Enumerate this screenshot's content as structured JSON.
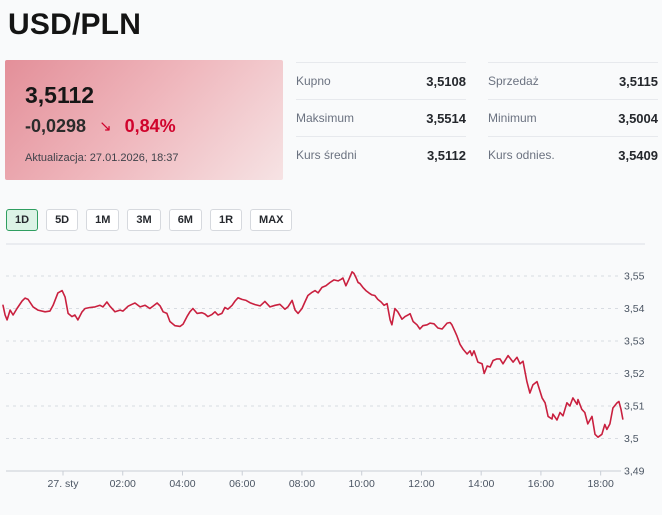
{
  "header": {
    "title": "USD/PLN"
  },
  "quote_card": {
    "value": "3,5112",
    "change": "-0,0298",
    "change_pct": "0,84%",
    "direction_icon": "arrow-down-right",
    "direction_glyph": "↘",
    "updated": "Aktualizacja: 27.01.2026, 18:37",
    "accent_red": "#d0032c",
    "gradient_from": "#e38f99",
    "gradient_to": "#f6e3e4"
  },
  "stats_table": {
    "columns": [
      {
        "rows": [
          {
            "label": "Kupno",
            "value": "3,5108"
          },
          {
            "label": "Maksimum",
            "value": "3,5514"
          },
          {
            "label": "Kurs średni",
            "value": "3,5112"
          }
        ]
      },
      {
        "rows": [
          {
            "label": "Sprzedaż",
            "value": "3,5115"
          },
          {
            "label": "Minimum",
            "value": "3,5004"
          },
          {
            "label": "Kurs odnies.",
            "value": "3,5409"
          }
        ]
      }
    ]
  },
  "range_selector": {
    "options": [
      "1D",
      "5D",
      "1M",
      "3M",
      "6M",
      "1R",
      "MAX"
    ],
    "active": "1D",
    "active_border": "#2f9e60",
    "active_bg": "#dcf3e6"
  },
  "chart_data": {
    "type": "line",
    "title": "",
    "xlabel": "",
    "ylabel": "",
    "line_color": "#c9203f",
    "grid": "dashed-horizontal",
    "x_unit": "hours since 00:00 on 27.01",
    "xlim": [
      -2.11,
      18.8
    ],
    "ylim": [
      3.49,
      3.556
    ],
    "x_ticks": [
      {
        "h": 0,
        "label": "27. sty"
      },
      {
        "h": 2,
        "label": "02:00"
      },
      {
        "h": 4,
        "label": "04:00"
      },
      {
        "h": 6,
        "label": "06:00"
      },
      {
        "h": 8,
        "label": "08:00"
      },
      {
        "h": 10,
        "label": "10:00"
      },
      {
        "h": 12,
        "label": "12:00"
      },
      {
        "h": 14,
        "label": "14:00"
      },
      {
        "h": 16,
        "label": "16:00"
      },
      {
        "h": 18,
        "label": "18:00"
      }
    ],
    "y_ticks": [
      {
        "v": 3.55,
        "label": "3,55"
      },
      {
        "v": 3.54,
        "label": "3,54"
      },
      {
        "v": 3.53,
        "label": "3,53"
      },
      {
        "v": 3.52,
        "label": "3,52"
      },
      {
        "v": 3.51,
        "label": "3,51"
      },
      {
        "v": 3.5,
        "label": "3,5"
      },
      {
        "v": 3.49,
        "label": "3,49",
        "axis": true
      }
    ],
    "points": [
      [
        -2.01,
        3.541
      ],
      [
        -1.94,
        3.538
      ],
      [
        -1.87,
        3.5365
      ],
      [
        -1.77,
        3.5395
      ],
      [
        -1.67,
        3.538
      ],
      [
        -1.54,
        3.54
      ],
      [
        -1.37,
        3.5423
      ],
      [
        -1.27,
        3.5432
      ],
      [
        -1.17,
        3.5428
      ],
      [
        -1,
        3.5405
      ],
      [
        -0.84,
        3.5395
      ],
      [
        -0.6,
        3.539
      ],
      [
        -0.44,
        3.5392
      ],
      [
        -0.33,
        3.541
      ],
      [
        -0.17,
        3.5448
      ],
      [
        -0.03,
        3.5455
      ],
      [
        0.07,
        3.5435
      ],
      [
        0.17,
        3.5385
      ],
      [
        0.3,
        3.5375
      ],
      [
        0.4,
        3.538
      ],
      [
        0.5,
        3.5365
      ],
      [
        0.64,
        3.539
      ],
      [
        0.74,
        3.54
      ],
      [
        0.9,
        3.5403
      ],
      [
        1.07,
        3.5405
      ],
      [
        1.24,
        3.541
      ],
      [
        1.34,
        3.5405
      ],
      [
        1.47,
        3.542
      ],
      [
        1.57,
        3.5407
      ],
      [
        1.74,
        3.539
      ],
      [
        1.91,
        3.5395
      ],
      [
        2.01,
        3.5392
      ],
      [
        2.18,
        3.5407
      ],
      [
        2.31,
        3.5413
      ],
      [
        2.41,
        3.5417
      ],
      [
        2.58,
        3.5405
      ],
      [
        2.75,
        3.541
      ],
      [
        2.91,
        3.54
      ],
      [
        3.01,
        3.5407
      ],
      [
        3.15,
        3.5417
      ],
      [
        3.25,
        3.5408
      ],
      [
        3.35,
        3.539
      ],
      [
        3.48,
        3.5385
      ],
      [
        3.58,
        3.536
      ],
      [
        3.75,
        3.5347
      ],
      [
        3.92,
        3.5345
      ],
      [
        4.02,
        3.5352
      ],
      [
        4.15,
        3.5375
      ],
      [
        4.25,
        3.539
      ],
      [
        4.35,
        3.54
      ],
      [
        4.49,
        3.5385
      ],
      [
        4.65,
        3.5387
      ],
      [
        4.75,
        3.5383
      ],
      [
        4.85,
        3.5375
      ],
      [
        4.99,
        3.5382
      ],
      [
        5.09,
        3.539
      ],
      [
        5.19,
        3.538
      ],
      [
        5.32,
        3.5385
      ],
      [
        5.42,
        3.5403
      ],
      [
        5.52,
        3.5398
      ],
      [
        5.66,
        3.541
      ],
      [
        5.76,
        3.5423
      ],
      [
        5.86,
        3.5433
      ],
      [
        5.99,
        3.5428
      ],
      [
        6.13,
        3.5425
      ],
      [
        6.26,
        3.5418
      ],
      [
        6.43,
        3.5412
      ],
      [
        6.6,
        3.5408
      ],
      [
        6.76,
        3.5422
      ],
      [
        6.93,
        3.5405
      ],
      [
        7.1,
        3.541
      ],
      [
        7.26,
        3.5413
      ],
      [
        7.43,
        3.5398
      ],
      [
        7.53,
        3.5405
      ],
      [
        7.67,
        3.5425
      ],
      [
        7.77,
        3.5395
      ],
      [
        7.87,
        3.5385
      ],
      [
        8,
        3.54
      ],
      [
        8.1,
        3.542
      ],
      [
        8.2,
        3.544
      ],
      [
        8.34,
        3.545
      ],
      [
        8.44,
        3.5455
      ],
      [
        8.54,
        3.5448
      ],
      [
        8.67,
        3.5465
      ],
      [
        8.8,
        3.547
      ],
      [
        8.94,
        3.548
      ],
      [
        9.07,
        3.5488
      ],
      [
        9.21,
        3.5485
      ],
      [
        9.31,
        3.549
      ],
      [
        9.37,
        3.5494
      ],
      [
        9.47,
        3.547
      ],
      [
        9.57,
        3.549
      ],
      [
        9.68,
        3.5513
      ],
      [
        9.74,
        3.5508
      ],
      [
        9.81,
        3.5495
      ],
      [
        9.88,
        3.548
      ],
      [
        9.94,
        3.5477
      ],
      [
        10.04,
        3.5465
      ],
      [
        10.14,
        3.5455
      ],
      [
        10.24,
        3.5448
      ],
      [
        10.34,
        3.5442
      ],
      [
        10.44,
        3.544
      ],
      [
        10.54,
        3.5428
      ],
      [
        10.65,
        3.542
      ],
      [
        10.75,
        3.541
      ],
      [
        10.85,
        3.5415
      ],
      [
        10.95,
        3.5365
      ],
      [
        11.01,
        3.535
      ],
      [
        11.11,
        3.54
      ],
      [
        11.21,
        3.539
      ],
      [
        11.35,
        3.5367
      ],
      [
        11.45,
        3.5375
      ],
      [
        11.55,
        3.538
      ],
      [
        11.62,
        3.5384
      ],
      [
        11.72,
        3.536
      ],
      [
        11.85,
        3.535
      ],
      [
        11.95,
        3.5337
      ],
      [
        12.05,
        3.5347
      ],
      [
        12.19,
        3.535
      ],
      [
        12.29,
        3.5355
      ],
      [
        12.42,
        3.5353
      ],
      [
        12.55,
        3.534
      ],
      [
        12.69,
        3.5337
      ],
      [
        12.86,
        3.5355
      ],
      [
        12.96,
        3.5357
      ],
      [
        13.02,
        3.535
      ],
      [
        13.12,
        3.533
      ],
      [
        13.19,
        3.5315
      ],
      [
        13.29,
        3.529
      ],
      [
        13.39,
        3.5275
      ],
      [
        13.53,
        3.526
      ],
      [
        13.63,
        3.527
      ],
      [
        13.69,
        3.5255
      ],
      [
        13.76,
        3.527
      ],
      [
        13.89,
        3.5235
      ],
      [
        14.03,
        3.523
      ],
      [
        14.1,
        3.52
      ],
      [
        14.2,
        3.5223
      ],
      [
        14.3,
        3.522
      ],
      [
        14.4,
        3.524
      ],
      [
        14.53,
        3.5245
      ],
      [
        14.63,
        3.5245
      ],
      [
        14.73,
        3.523
      ],
      [
        14.9,
        3.5255
      ],
      [
        15.07,
        3.5235
      ],
      [
        15.2,
        3.525
      ],
      [
        15.3,
        3.523
      ],
      [
        15.4,
        3.5238
      ],
      [
        15.53,
        3.5175
      ],
      [
        15.63,
        3.514
      ],
      [
        15.73,
        3.5165
      ],
      [
        15.87,
        3.5175
      ],
      [
        16.04,
        3.5125
      ],
      [
        16.14,
        3.511
      ],
      [
        16.24,
        3.5068
      ],
      [
        16.37,
        3.506
      ],
      [
        16.4,
        3.5075
      ],
      [
        16.54,
        3.5057
      ],
      [
        16.64,
        3.508
      ],
      [
        16.74,
        3.507
      ],
      [
        16.87,
        3.511
      ],
      [
        16.97,
        3.51
      ],
      [
        17.07,
        3.5125
      ],
      [
        17.21,
        3.5105
      ],
      [
        17.24,
        3.512
      ],
      [
        17.37,
        3.509
      ],
      [
        17.47,
        3.508
      ],
      [
        17.57,
        3.5045
      ],
      [
        17.71,
        3.5068
      ],
      [
        17.81,
        3.5013
      ],
      [
        17.91,
        3.5004
      ],
      [
        18.04,
        3.5013
      ],
      [
        18.14,
        3.5043
      ],
      [
        18.21,
        3.5028
      ],
      [
        18.31,
        3.5045
      ],
      [
        18.41,
        3.5094
      ],
      [
        18.55,
        3.511
      ],
      [
        18.61,
        3.5114
      ],
      [
        18.68,
        3.509
      ],
      [
        18.74,
        3.506
      ]
    ]
  }
}
